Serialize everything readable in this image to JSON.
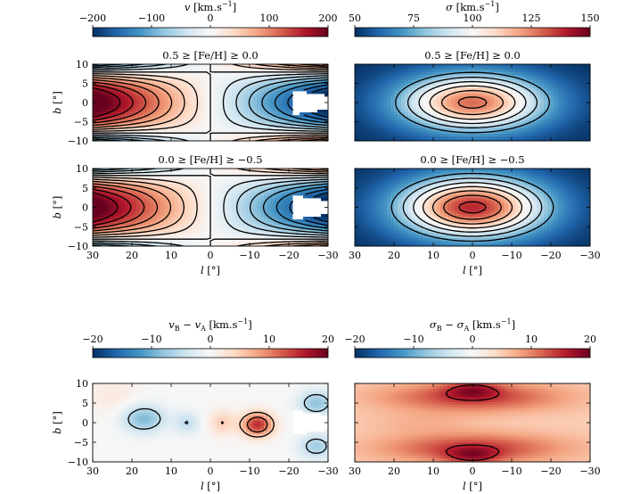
{
  "chart_data": [
    {
      "type": "heatmap",
      "quantity": "mean velocity",
      "colorbar": {
        "label_symbol": "v",
        "label_unit": " [km.s",
        "label_exp": "−1",
        "label_close": "]",
        "ticks": [
          -200,
          -100,
          0,
          100,
          200
        ],
        "tick_labels": [
          "−200",
          "−100",
          "0",
          "100",
          "200"
        ],
        "range": [
          -200,
          200
        ],
        "colormap": "RdBu_r"
      },
      "panels": [
        {
          "title": "0.5 ≥ [Fe/H] ≥ 0.0",
          "xlim": [
            30,
            -30
          ],
          "ylim": [
            -10,
            10
          ],
          "xlabel": "",
          "ylabel": "b [°]",
          "x_tick_labels": [],
          "y_tick_labels": [
            "10",
            "5",
            "0",
            "−5",
            "−10"
          ],
          "contour_levels": [
            -175,
            -150,
            -125,
            -100,
            -75,
            -50,
            -25,
            0,
            25,
            50,
            75,
            100,
            125,
            150,
            175
          ],
          "masked_region": "l < −20°, |b| < 3°"
        },
        {
          "title": "0.0 ≥ [Fe/H] ≥ −0.5",
          "xlim": [
            30,
            -30
          ],
          "ylim": [
            -10,
            10
          ],
          "xlabel": "l [°]",
          "ylabel": "b [°]",
          "x_tick_labels": [
            "30",
            "20",
            "10",
            "0",
            "−10",
            "−20",
            "−30"
          ],
          "y_tick_labels": [
            "10",
            "5",
            "0",
            "−5",
            "−10"
          ],
          "contour_levels": [
            -175,
            -150,
            -125,
            -100,
            -75,
            -50,
            -25,
            0,
            25,
            50,
            75,
            100,
            125,
            150,
            175
          ]
        }
      ]
    },
    {
      "type": "heatmap",
      "quantity": "velocity dispersion",
      "colorbar": {
        "label_symbol": "σ",
        "label_unit": " [km.s",
        "label_exp": "−1",
        "label_close": "]",
        "ticks": [
          50,
          75,
          100,
          125,
          150
        ],
        "tick_labels": [
          "50",
          "75",
          "100",
          "125",
          "150"
        ],
        "range": [
          50,
          150
        ],
        "colormap": "RdBu_r"
      },
      "panels": [
        {
          "title": "0.5 ≥ [Fe/H] ≥ 0.0",
          "xlim": [
            30,
            -30
          ],
          "ylim": [
            -10,
            10
          ],
          "xlabel": "",
          "x_tick_labels": [],
          "peak_value": 128,
          "peak_location": [
            0,
            0
          ],
          "contour_levels": [
            75,
            85,
            95,
            105,
            115,
            125
          ]
        },
        {
          "title": "0.0 ≥ [Fe/H] ≥ −0.5",
          "xlim": [
            30,
            -30
          ],
          "ylim": [
            -10,
            10
          ],
          "xlabel": "l [°]",
          "x_tick_labels": [
            "30",
            "20",
            "10",
            "0",
            "−10",
            "−20",
            "−30"
          ],
          "peak_value": 138,
          "peak_location": [
            0,
            0
          ],
          "contour_levels": [
            75,
            85,
            95,
            105,
            115,
            125,
            135
          ]
        }
      ]
    },
    {
      "type": "heatmap",
      "quantity": "velocity difference B − A",
      "colorbar": {
        "label_symbol": "v",
        "label_sub1": "B",
        "label_minus": " − v",
        "label_sub2": "A",
        "label_unit": " [km.s",
        "label_exp": "−1",
        "label_close": "]",
        "ticks": [
          -20,
          -10,
          0,
          10,
          20
        ],
        "tick_labels": [
          "−20",
          "−10",
          "0",
          "10",
          "20"
        ],
        "range": [
          -20,
          20
        ],
        "colormap": "RdBu_r"
      },
      "panels": [
        {
          "title": "",
          "xlim": [
            30,
            -30
          ],
          "ylim": [
            -10,
            10
          ],
          "xlabel": "l [°]",
          "ylabel": "b [°]",
          "x_tick_labels": [
            "30",
            "20",
            "10",
            "0",
            "−10",
            "−20",
            "−30"
          ],
          "y_tick_labels": [
            "10",
            "5",
            "0",
            "−5",
            "−10"
          ],
          "contour_levels": [
            -10,
            -5,
            5,
            10
          ],
          "masked_region": "l < −20°, |b| < 3°"
        }
      ]
    },
    {
      "type": "heatmap",
      "quantity": "dispersion difference B − A",
      "colorbar": {
        "label_symbol": "σ",
        "label_sub1": "B",
        "label_minus": " − σ",
        "label_sub2": "A",
        "label_unit": " [km.s",
        "label_exp": "−1",
        "label_close": "]",
        "ticks": [
          -20,
          -10,
          0,
          10,
          20
        ],
        "tick_labels": [
          "−20",
          "−10",
          "0",
          "10",
          "20"
        ],
        "range": [
          -20,
          20
        ],
        "colormap": "RdBu_r"
      },
      "panels": [
        {
          "title": "",
          "xlim": [
            30,
            -30
          ],
          "ylim": [
            -10,
            10
          ],
          "xlabel": "l [°]",
          "x_tick_labels": [
            "30",
            "20",
            "10",
            "0",
            "−10",
            "−20",
            "−30"
          ],
          "contour_levels": [
            5,
            15
          ]
        }
      ]
    }
  ],
  "axis_symbols": {
    "l": "l",
    "b": "b",
    "unit": " [°]"
  }
}
